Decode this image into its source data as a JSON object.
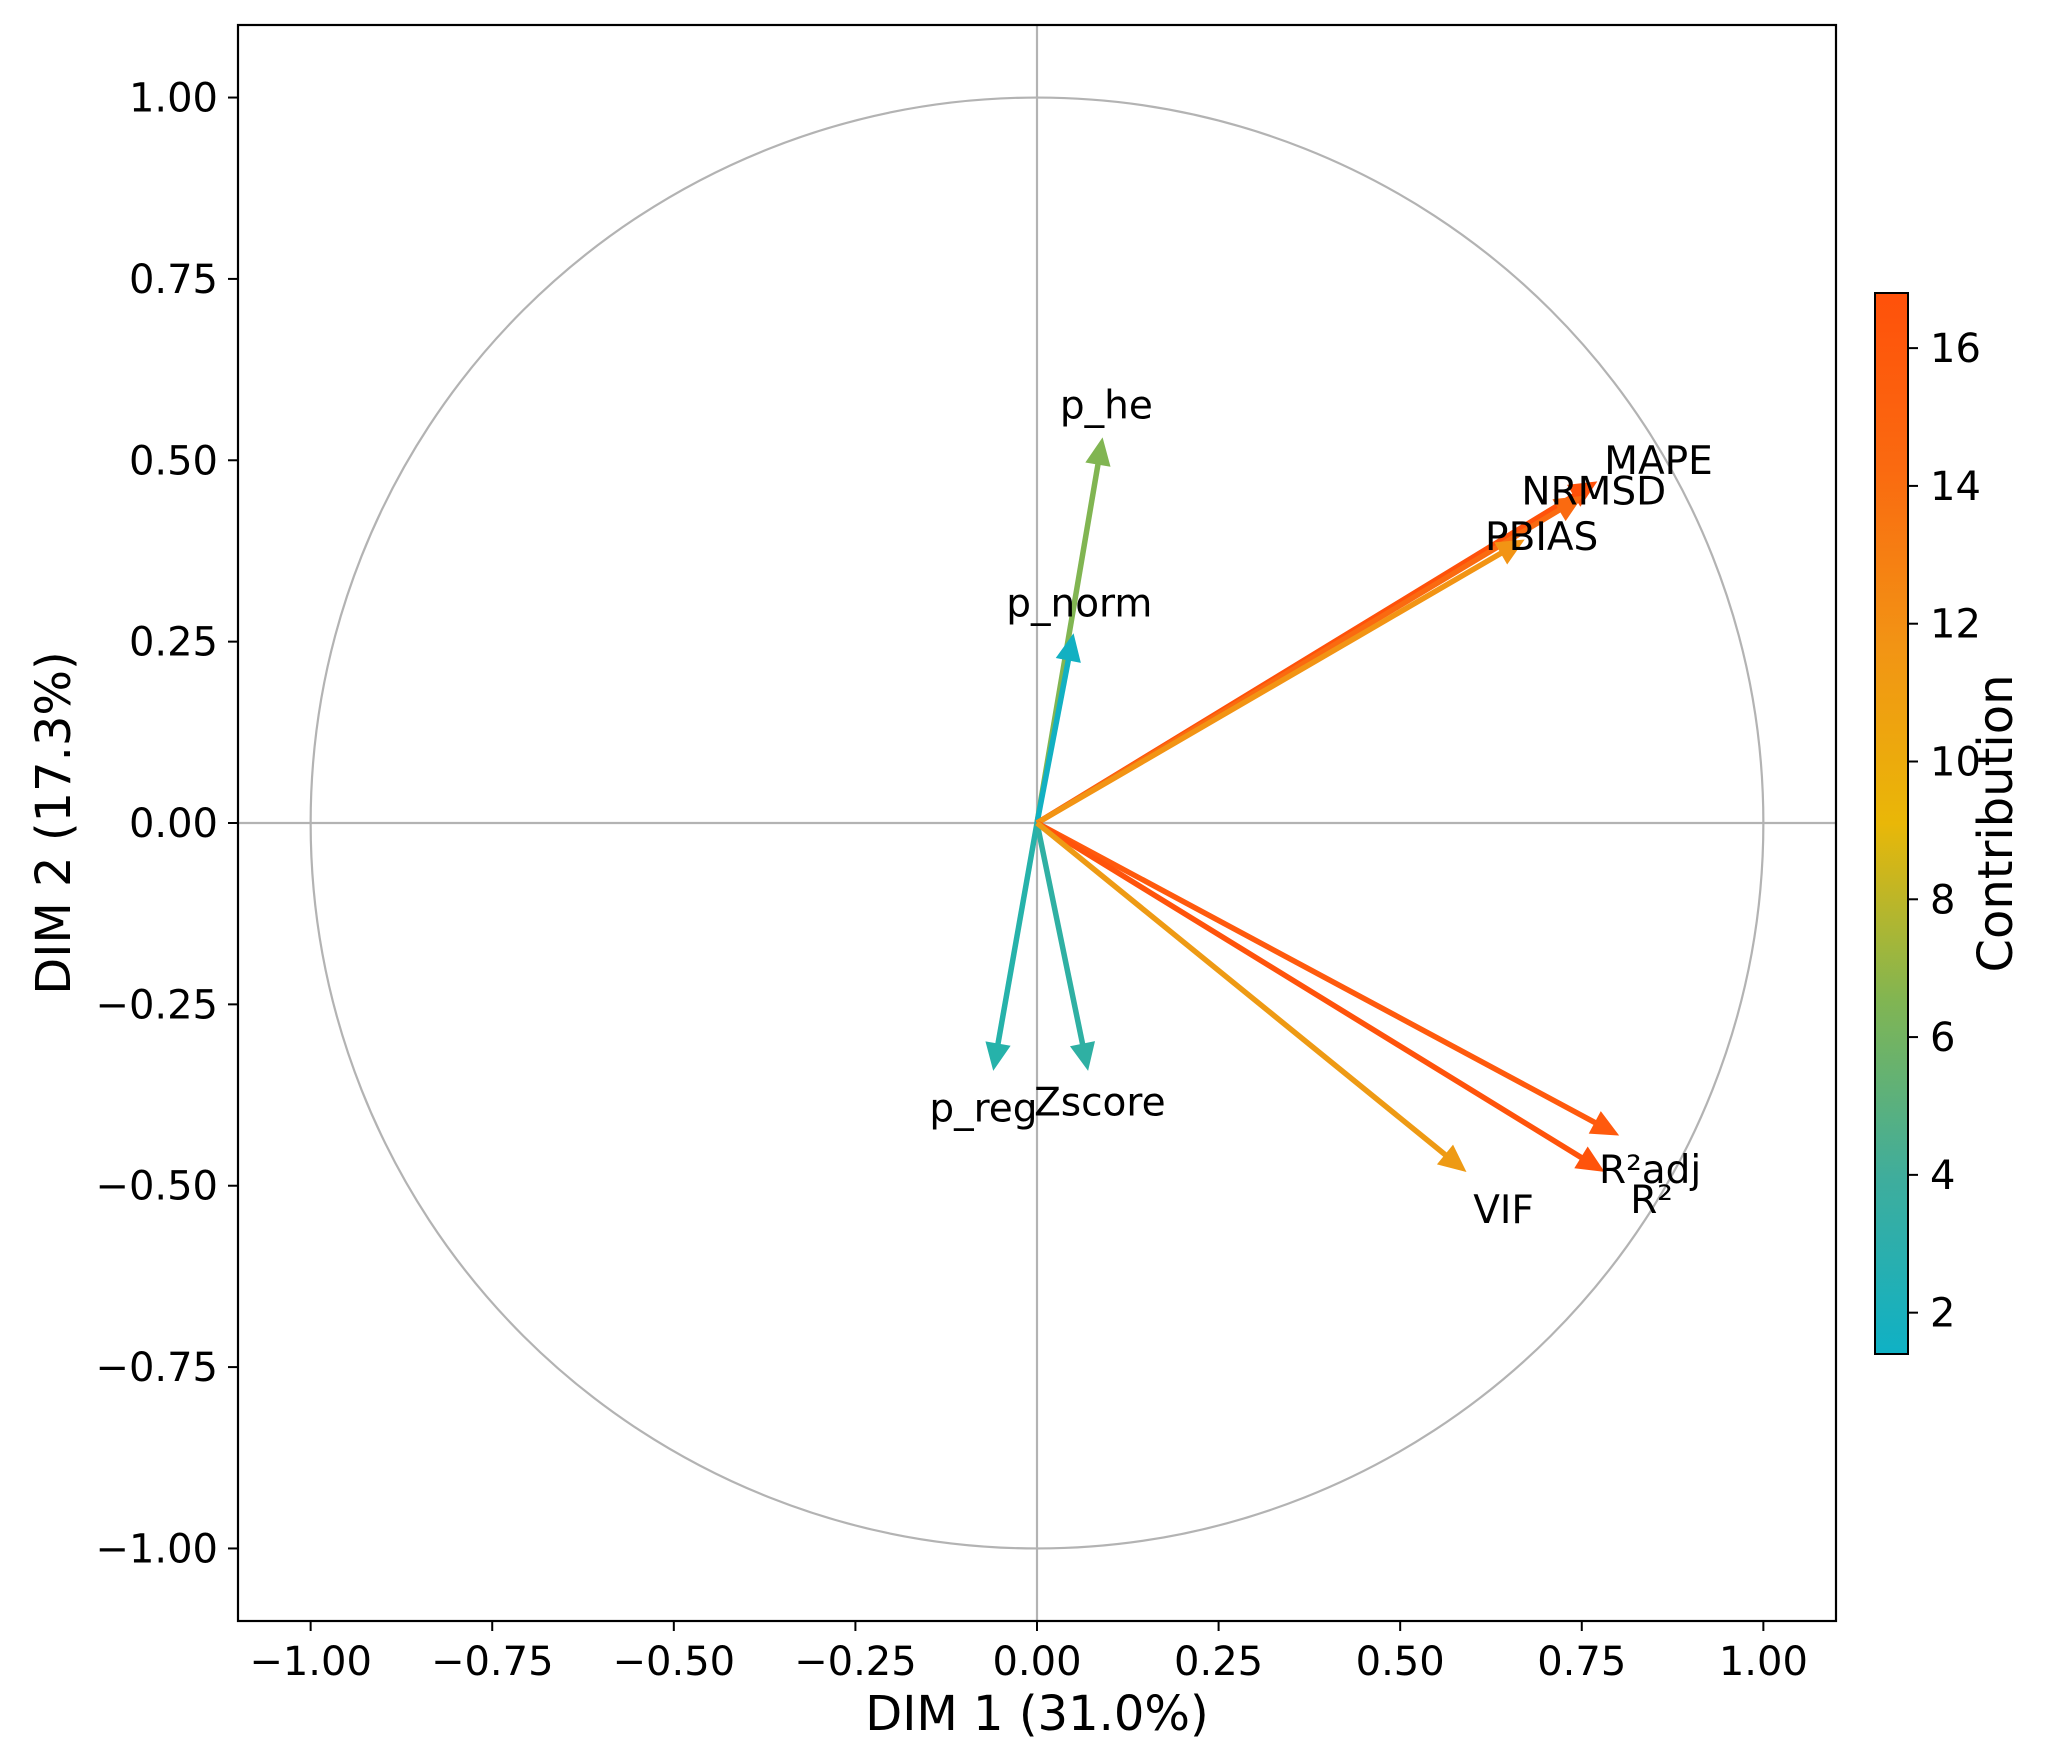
{
  "chart_data": {
    "type": "correlation-circle",
    "xlabel": "DIM 1 (31.0%)",
    "ylabel": "DIM 2 (17.3%)",
    "xlim": [
      -1.1,
      1.1
    ],
    "ylim": [
      -1.1,
      1.1
    ],
    "xticks": [
      -1.0,
      -0.75,
      -0.5,
      -0.25,
      0.0,
      0.25,
      0.5,
      0.75,
      1.0
    ],
    "yticks": [
      -1.0,
      -0.75,
      -0.5,
      -0.25,
      0.0,
      0.25,
      0.5,
      0.75,
      1.0
    ],
    "xtick_labels": [
      "−1.00",
      "−0.75",
      "−0.50",
      "−0.25",
      "0.00",
      "0.25",
      "0.50",
      "0.75",
      "1.00"
    ],
    "ytick_labels": [
      "−1.00",
      "−0.75",
      "−0.50",
      "−0.25",
      "0.00",
      "0.25",
      "0.50",
      "0.75",
      "1.00"
    ],
    "unit_circle": true,
    "reference_lines": [
      0,
      0
    ],
    "colorbar": {
      "label": "Contribution",
      "range": [
        1.4,
        16.8
      ],
      "ticks": [
        2,
        4,
        6,
        8,
        10,
        12,
        14,
        16
      ],
      "tick_labels": [
        "2",
        "4",
        "6",
        "8",
        "10",
        "12",
        "14",
        "16"
      ],
      "colormap": [
        "#0fb1c5",
        "#3fad9c",
        "#81b552",
        "#e9b708",
        "#f29414",
        "#fa6a10",
        "#ff510a"
      ]
    },
    "variables": [
      {
        "name": "p_he",
        "x": 0.09,
        "y": 0.53,
        "contribution": 7.0,
        "color": "#81b552"
      },
      {
        "name": "p_norm",
        "x": 0.05,
        "y": 0.26,
        "contribution": 1.8,
        "color": "#12b0c2"
      },
      {
        "name": "MAPE",
        "x": 0.77,
        "y": 0.47,
        "contribution": 16.8,
        "color": "#ff510a"
      },
      {
        "name": "NRMSD",
        "x": 0.75,
        "y": 0.45,
        "contribution": 15.6,
        "color": "#fa6a10"
      },
      {
        "name": "PBIAS",
        "x": 0.67,
        "y": 0.39,
        "contribution": 13.0,
        "color": "#f29414"
      },
      {
        "name": "p_reg",
        "x": -0.06,
        "y": -0.34,
        "contribution": 2.6,
        "color": "#26b2aa"
      },
      {
        "name": "Zscore",
        "x": 0.07,
        "y": -0.34,
        "contribution": 2.9,
        "color": "#2fb0a3"
      },
      {
        "name": "R²adj",
        "x": 0.8,
        "y": -0.43,
        "contribution": 16.3,
        "color": "#ff5a0d"
      },
      {
        "name": "R²",
        "x": 0.78,
        "y": -0.48,
        "contribution": 16.6,
        "color": "#ff530b"
      },
      {
        "name": "VIF",
        "x": 0.59,
        "y": -0.48,
        "contribution": 11.5,
        "color": "#ee9a14"
      }
    ]
  }
}
